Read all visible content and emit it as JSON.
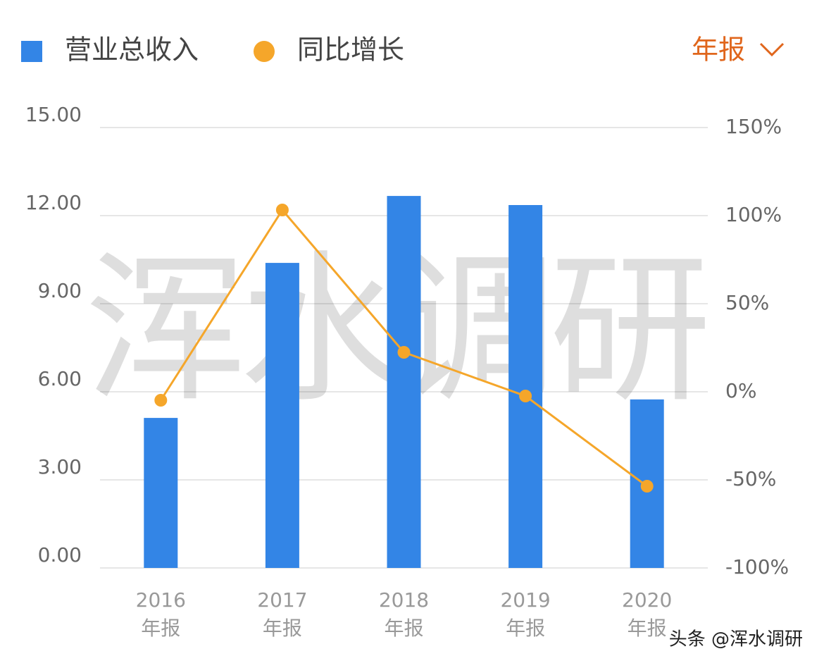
{
  "chart_data": {
    "type": "combo",
    "period_selector": "年报",
    "watermark": "浑水调研",
    "source_mark": "头条 @浑水调研",
    "categories": [
      "2016\n年报",
      "2017\n年报",
      "2018\n年报",
      "2019\n年报",
      "2020\n年报"
    ],
    "series": [
      {
        "name": "营业总收入",
        "type": "bar",
        "color": "#3385e6",
        "values": [
          5.11,
          10.39,
          12.67,
          12.36,
          5.74
        ]
      },
      {
        "name": "同比增长",
        "type": "line",
        "axis": "y2",
        "color": "#f5a62a",
        "values": [
          -4.8,
          103.2,
          22.4,
          -2.4,
          -53.6
        ]
      }
    ],
    "ylim": [
      0,
      15
    ],
    "yticks": [
      {
        "value": 0,
        "label": "0.00"
      },
      {
        "value": 3,
        "label": "3.00"
      },
      {
        "value": 6,
        "label": "6.00"
      },
      {
        "value": 9,
        "label": "9.00"
      },
      {
        "value": 12,
        "label": "12.00"
      },
      {
        "value": 15,
        "label": "15.00"
      }
    ],
    "y2lim": [
      -100,
      150
    ],
    "y2ticks": [
      {
        "value": -100,
        "label": "-100%"
      },
      {
        "value": -50,
        "label": "-50%"
      },
      {
        "value": 0,
        "label": "0%"
      },
      {
        "value": 50,
        "label": "50%"
      },
      {
        "value": 100,
        "label": "100%"
      },
      {
        "value": 150,
        "label": "150%"
      }
    ],
    "grid": true
  }
}
